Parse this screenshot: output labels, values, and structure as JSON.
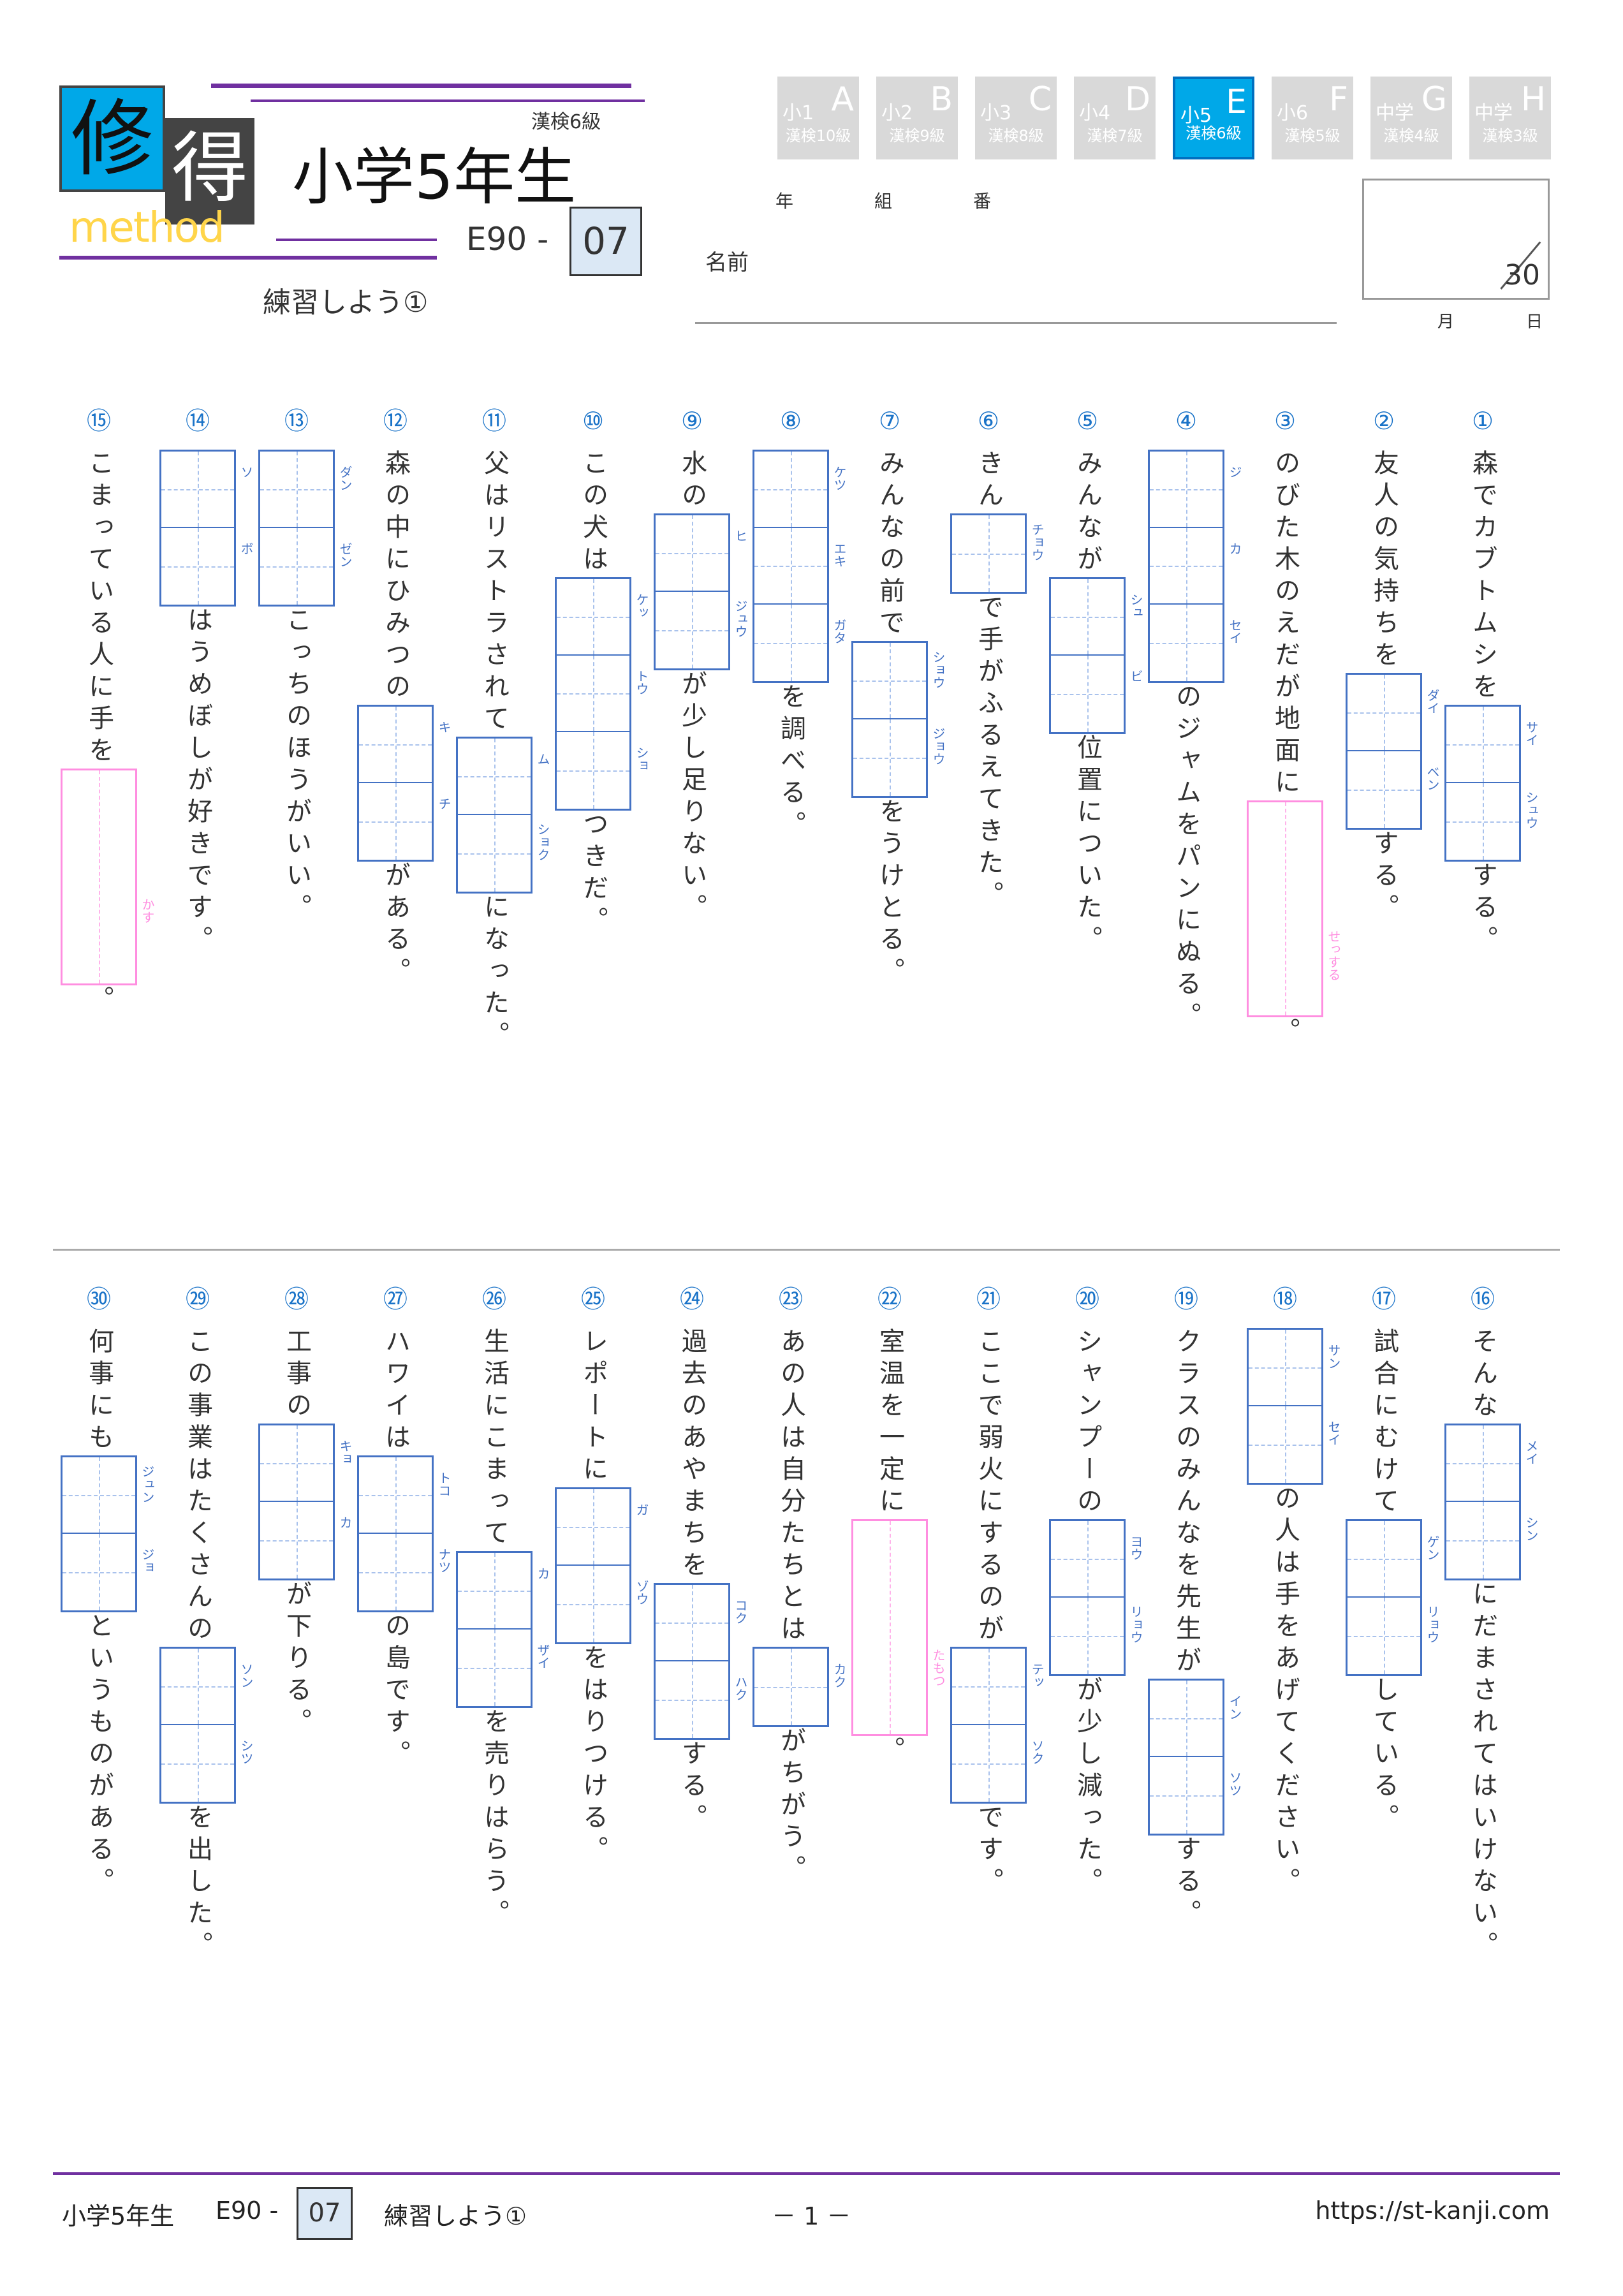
{
  "header": {
    "logo_main": "修",
    "logo_sub": "得",
    "logo_method": "method",
    "kanken_level": "漢検6級",
    "title": "小学5年生",
    "code_prefix": "E90 -",
    "code_number": "07",
    "subtitle": "練習しよう①",
    "labels": {
      "year": "年",
      "class": "組",
      "number": "番",
      "name": "名前",
      "month": "月",
      "day": "日"
    },
    "score_total": "30"
  },
  "grade_tabs": [
    {
      "grade": "小1",
      "letter": "A",
      "kanken": "漢検10級"
    },
    {
      "grade": "小2",
      "letter": "B",
      "kanken": "漢検9級"
    },
    {
      "grade": "小3",
      "letter": "C",
      "kanken": "漢検8級"
    },
    {
      "grade": "小4",
      "letter": "D",
      "kanken": "漢検7級"
    },
    {
      "grade": "小5",
      "letter": "E",
      "kanken": "漢検6級",
      "active": true
    },
    {
      "grade": "小6",
      "letter": "F",
      "kanken": "漢検5級"
    },
    {
      "grade": "中学",
      "letter": "G",
      "kanken": "漢検4級"
    },
    {
      "grade": "中学",
      "letter": "H",
      "kanken": "漢検3級"
    }
  ],
  "colors": {
    "accent": "#00a8e8",
    "purple": "#7030a0",
    "box_blue": "#4472c4",
    "okurigana_pink": "#ff8ee0",
    "code_box": "#dbe8f5"
  },
  "questions": [
    {
      "num": "①",
      "segments": [
        {
          "text": "森でカブトムシを"
        },
        {
          "box": [
            "サイ",
            "シュウ"
          ]
        },
        {
          "text": "する。"
        }
      ]
    },
    {
      "num": "②",
      "segments": [
        {
          "text": "友人の気持ちを"
        },
        {
          "box": [
            "ダイ",
            "ベン"
          ]
        },
        {
          "text": "する。"
        }
      ]
    },
    {
      "num": "③",
      "segments": [
        {
          "text": "のびた木のえだが地面に"
        },
        {
          "okuri": "せっする"
        },
        {
          "text": "。"
        }
      ]
    },
    {
      "num": "④",
      "segments": [
        {
          "box": [
            "ジ",
            "カ",
            "セイ"
          ]
        },
        {
          "text": "のジャムをパンにぬる。"
        }
      ]
    },
    {
      "num": "⑤",
      "segments": [
        {
          "text": "みんなが"
        },
        {
          "box": [
            "シュ",
            "ビ"
          ]
        },
        {
          "text": "位置についた。"
        }
      ]
    },
    {
      "num": "⑥",
      "segments": [
        {
          "text": "きん"
        },
        {
          "box": [
            "チョウ"
          ]
        },
        {
          "text": "で手がふるえてきた。"
        }
      ]
    },
    {
      "num": "⑦",
      "segments": [
        {
          "text": "みんなの前で"
        },
        {
          "box": [
            "ショウ",
            "ジョウ"
          ]
        },
        {
          "text": "をうけとる。"
        }
      ]
    },
    {
      "num": "⑧",
      "segments": [
        {
          "box": [
            "ケツ",
            "エキ",
            "ガタ"
          ]
        },
        {
          "text": "を調べる。"
        }
      ]
    },
    {
      "num": "⑨",
      "segments": [
        {
          "text": "水の"
        },
        {
          "box": [
            "ヒ",
            "ジュウ"
          ]
        },
        {
          "text": "が少し足りない。"
        }
      ]
    },
    {
      "num": "⑩",
      "segments": [
        {
          "text": "この犬は"
        },
        {
          "box": [
            "ケッ",
            "トウ",
            "ショ"
          ]
        },
        {
          "text": "つきだ。"
        }
      ]
    },
    {
      "num": "⑪",
      "segments": [
        {
          "text": "父はリストラされて"
        },
        {
          "box": [
            "ム",
            "ショク"
          ]
        },
        {
          "text": "になった。"
        }
      ]
    },
    {
      "num": "⑫",
      "segments": [
        {
          "text": "森の中にひみつの"
        },
        {
          "box": [
            "キ",
            "チ"
          ]
        },
        {
          "text": "がある。"
        }
      ]
    },
    {
      "num": "⑬",
      "segments": [
        {
          "box": [
            "ダン",
            "ゼン"
          ]
        },
        {
          "text": "こっちのほうがいい。"
        }
      ]
    },
    {
      "num": "⑭",
      "segments": [
        {
          "box": [
            "ソ",
            "ボ"
          ]
        },
        {
          "text": "はうめぼしが好きです。"
        }
      ]
    },
    {
      "num": "⑮",
      "segments": [
        {
          "text": "こまっている人に手を"
        },
        {
          "okuri": "かす"
        },
        {
          "text": "。"
        }
      ]
    },
    {
      "num": "⑯",
      "segments": [
        {
          "text": "そんな"
        },
        {
          "box": [
            "メイ",
            "シン"
          ]
        },
        {
          "text": "にだまされてはいけない。"
        }
      ]
    },
    {
      "num": "⑰",
      "segments": [
        {
          "text": "試合にむけて"
        },
        {
          "box": [
            "ゲン",
            "リョウ"
          ]
        },
        {
          "text": "している。"
        }
      ]
    },
    {
      "num": "⑱",
      "segments": [
        {
          "box": [
            "サン",
            "セイ"
          ]
        },
        {
          "text": "の人は手をあげてください。"
        }
      ]
    },
    {
      "num": "⑲",
      "segments": [
        {
          "text": "クラスのみんなを先生が"
        },
        {
          "box": [
            "イン",
            "ソツ"
          ]
        },
        {
          "text": "する。"
        }
      ]
    },
    {
      "num": "⑳",
      "segments": [
        {
          "text": "シャンプーの"
        },
        {
          "box": [
            "ヨウ",
            "リョウ"
          ]
        },
        {
          "text": "が少し減った。"
        }
      ]
    },
    {
      "num": "㉑",
      "segments": [
        {
          "text": "ここで弱火にするのが"
        },
        {
          "box": [
            "テッ",
            "ソク"
          ]
        },
        {
          "text": "です。"
        }
      ]
    },
    {
      "num": "㉒",
      "segments": [
        {
          "text": "室温を一定に"
        },
        {
          "okuri": "たもつ"
        },
        {
          "text": "。"
        }
      ]
    },
    {
      "num": "㉓",
      "segments": [
        {
          "text": "あの人は自分たちとは"
        },
        {
          "box": [
            "カク"
          ]
        },
        {
          "text": "がちがう。"
        }
      ]
    },
    {
      "num": "㉔",
      "segments": [
        {
          "text": "過去のあやまちを"
        },
        {
          "box": [
            "コク",
            "ハク"
          ]
        },
        {
          "text": "する。"
        }
      ]
    },
    {
      "num": "㉕",
      "segments": [
        {
          "text": "レポートに"
        },
        {
          "box": [
            "ガ",
            "ゾウ"
          ]
        },
        {
          "text": "をはりつける。"
        }
      ]
    },
    {
      "num": "㉖",
      "segments": [
        {
          "text": "生活にこまって"
        },
        {
          "box": [
            "カ",
            "ザイ"
          ]
        },
        {
          "text": "を売りはらう。"
        }
      ]
    },
    {
      "num": "㉗",
      "segments": [
        {
          "text": "ハワイは"
        },
        {
          "box": [
            "トコ",
            "ナツ"
          ]
        },
        {
          "text": "の島です。"
        }
      ]
    },
    {
      "num": "㉘",
      "segments": [
        {
          "text": "工事の"
        },
        {
          "box": [
            "キョ",
            "カ"
          ]
        },
        {
          "text": "が下りる。"
        }
      ]
    },
    {
      "num": "㉙",
      "segments": [
        {
          "text": "この事業はたくさんの"
        },
        {
          "box": [
            "ソン",
            "シツ"
          ]
        },
        {
          "text": "を出した。"
        }
      ]
    },
    {
      "num": "㉚",
      "segments": [
        {
          "text": "何事にも"
        },
        {
          "box": [
            "ジュン",
            "ジョ"
          ]
        },
        {
          "text": "というものがある。"
        }
      ]
    }
  ],
  "footer": {
    "grade": "小学5年生",
    "code_prefix": "E90 -",
    "code_number": "07",
    "subtitle": "練習しよう①",
    "page": "－ 1 －",
    "url": "https://st-kanji.com"
  }
}
